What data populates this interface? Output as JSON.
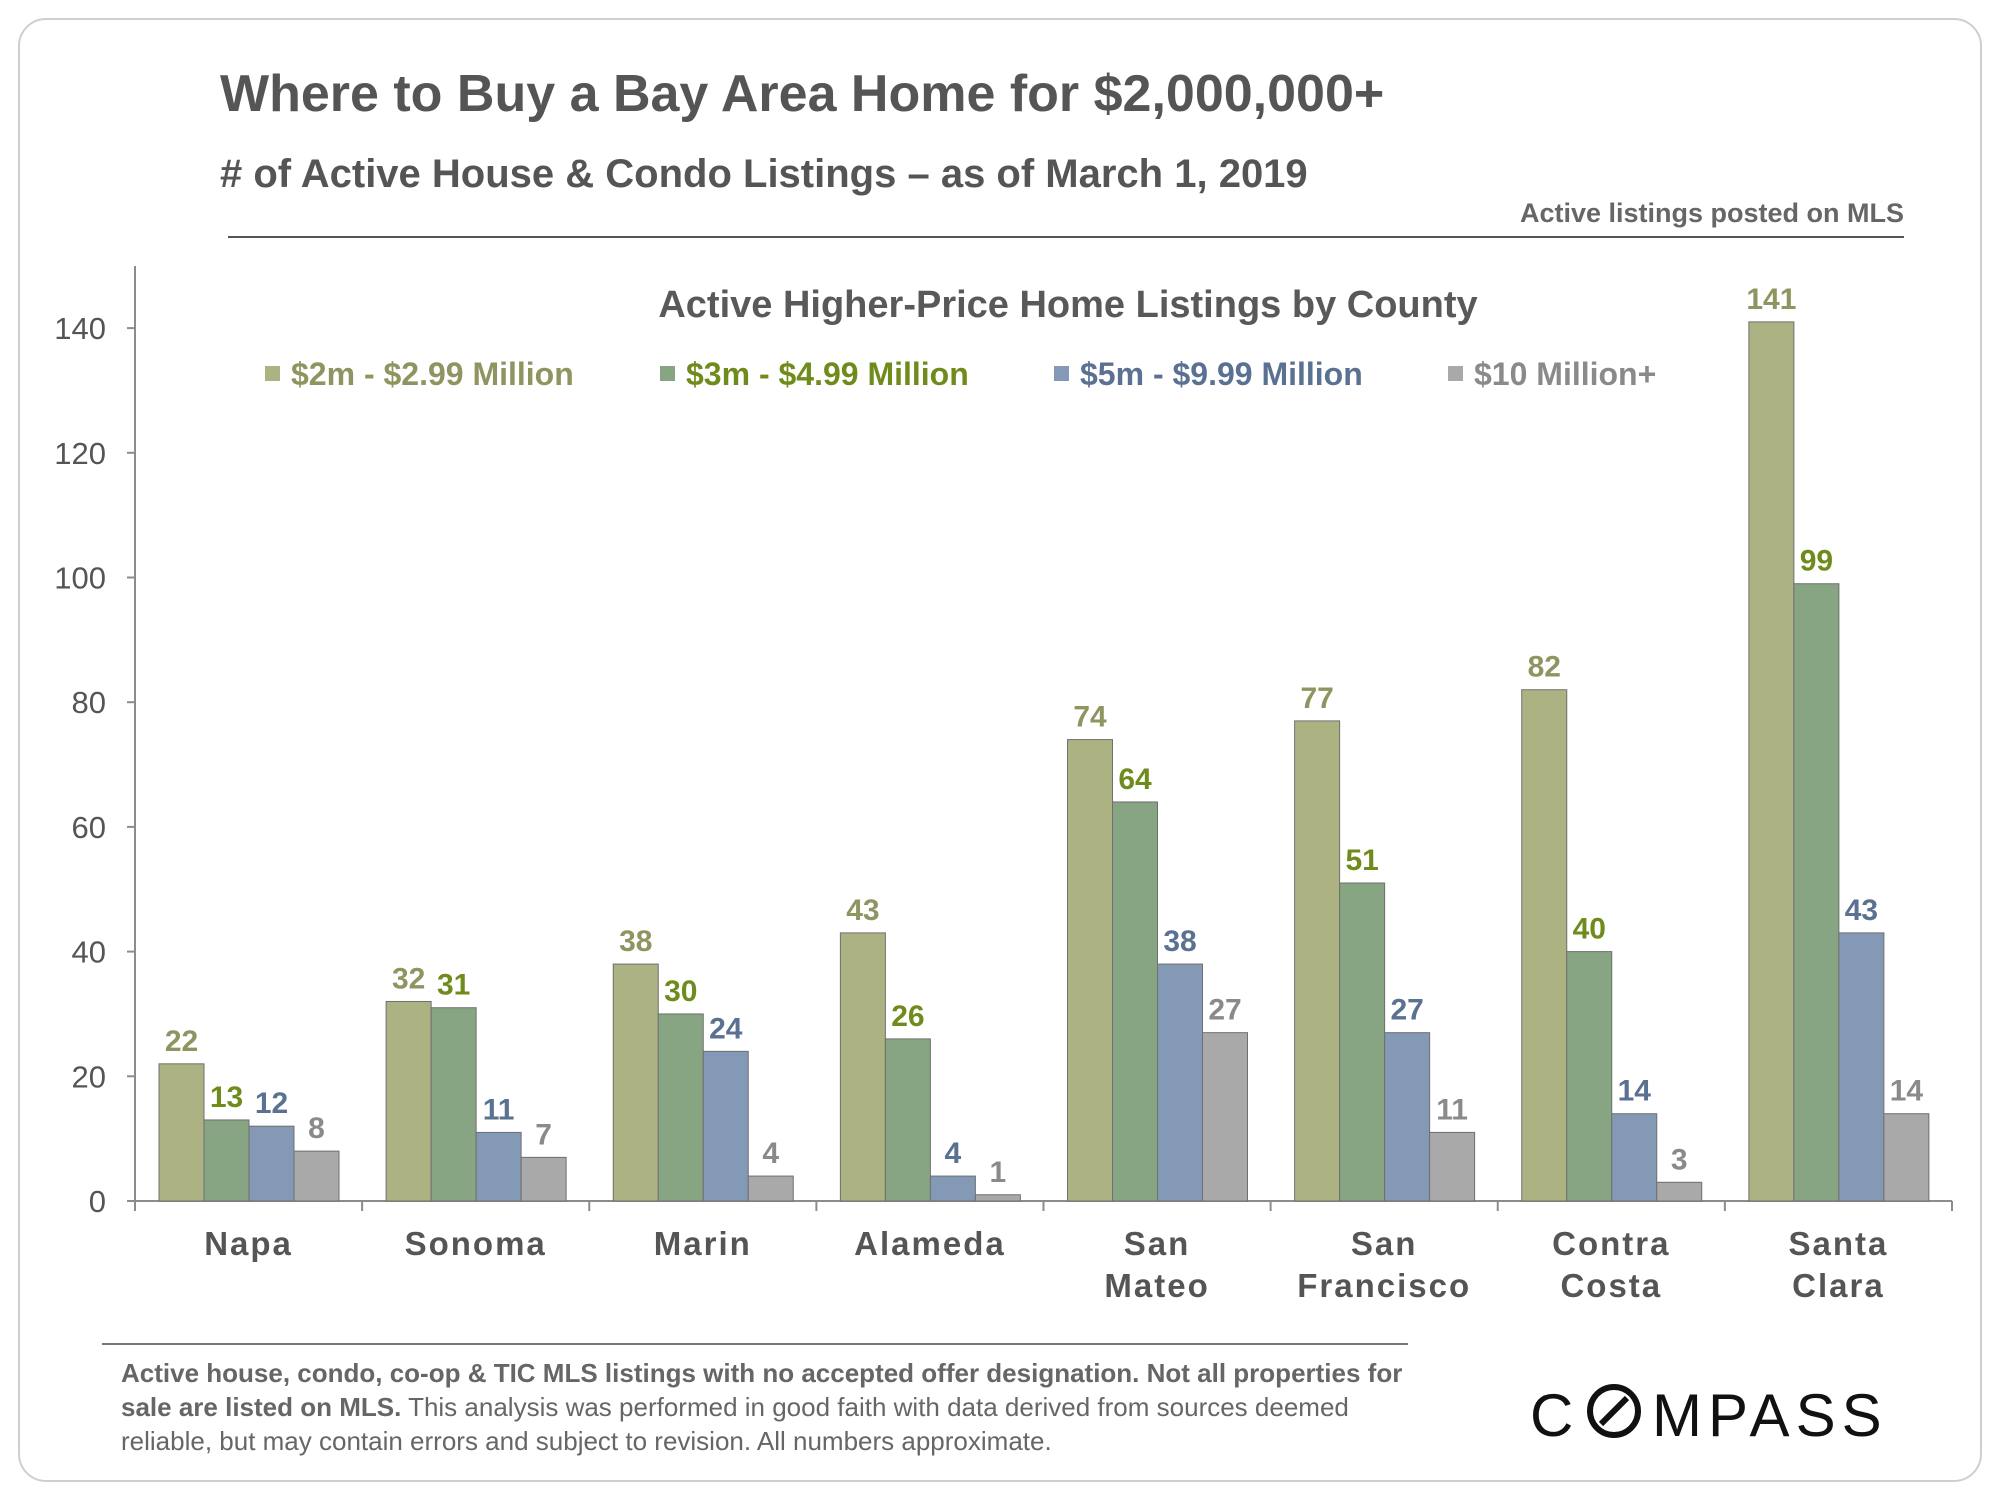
{
  "header": {
    "title": "Where to Buy a Bay Area Home for $2,000,000+",
    "subtitle": "# of Active House & Condo Listings – as of March 1, 2019",
    "source_note": "Active listings  posted on MLS"
  },
  "footer": {
    "note_bold": "Active house, condo, co-op & TIC MLS listings with no accepted offer designation. Not all properties for sale are listed on MLS.",
    "note_regular": " This analysis was performed  in good faith with data derived from sources deemed reliable, but may contain errors  and subject to revision.  All numbers approximate.",
    "logo": "COMPASS"
  },
  "chart_data": {
    "type": "bar",
    "title": "Active Higher-Price Home Listings by County",
    "xlabel": "",
    "ylabel": "",
    "ylim": [
      0,
      150
    ],
    "yticks": [
      0,
      20,
      40,
      60,
      80,
      100,
      120,
      140
    ],
    "grid": false,
    "legend_position": "top",
    "categories": [
      [
        "Napa"
      ],
      [
        "Sonoma"
      ],
      [
        "Marin"
      ],
      [
        "Alameda"
      ],
      [
        "San",
        "Mateo"
      ],
      [
        "San",
        "Francisco"
      ],
      [
        "Contra",
        "Costa"
      ],
      [
        "Santa",
        "Clara"
      ]
    ],
    "series": [
      {
        "name": "$2m  - $2.99 Million",
        "color": "#adb282",
        "label_color": "#8f9460",
        "values": [
          22,
          32,
          38,
          43,
          74,
          77,
          82,
          141
        ]
      },
      {
        "name": "$3m  - $4.99 Million",
        "color": "#88a583",
        "label_color": "#6f8b1c",
        "values": [
          13,
          31,
          30,
          26,
          64,
          51,
          40,
          99
        ]
      },
      {
        "name": "$5m  - $9.99 Million",
        "color": "#8399b5",
        "label_color": "#5a7192",
        "values": [
          12,
          11,
          24,
          4,
          38,
          27,
          14,
          43
        ]
      },
      {
        "name": "$10 Million+",
        "color": "#a9a9a9",
        "label_color": "#8a8a8a",
        "values": [
          8,
          7,
          4,
          1,
          27,
          11,
          3,
          14
        ]
      }
    ]
  }
}
